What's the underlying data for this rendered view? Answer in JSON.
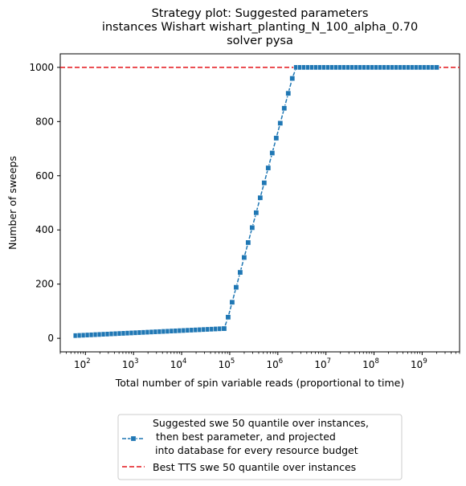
{
  "chart_data": {
    "type": "line",
    "title_lines": [
      "Strategy plot: Suggested parameters",
      "instances Wishart wishart_planting_N_100_alpha_0.70",
      "solver pysa"
    ],
    "xlabel": "Total number of spin variable reads (proportional to time)",
    "ylabel": "Number of sweeps",
    "x_scale": "log",
    "xlim": [
      30,
      6000000000
    ],
    "ylim": [
      -50,
      1050
    ],
    "x_ticks": [
      {
        "base": "10",
        "exp": "2",
        "value": 100
      },
      {
        "base": "10",
        "exp": "3",
        "value": 1000
      },
      {
        "base": "10",
        "exp": "4",
        "value": 10000
      },
      {
        "base": "10",
        "exp": "5",
        "value": 100000
      },
      {
        "base": "10",
        "exp": "6",
        "value": 1000000
      },
      {
        "base": "10",
        "exp": "7",
        "value": 10000000
      },
      {
        "base": "10",
        "exp": "8",
        "value": 100000000
      },
      {
        "base": "10",
        "exp": "9",
        "value": 1000000000
      }
    ],
    "y_ticks": [
      0,
      200,
      400,
      600,
      800,
      1000
    ],
    "grid": false,
    "legend_placement": "below plot",
    "series": [
      {
        "name": "Suggested swe 50 quantile over instances,\n  then best parameter, and projected\n into database for every resource budget",
        "label_lines": [
          "Suggested swe 50 quantile over instances,",
          "then best parameter, and projected",
          "into database for every resource budget"
        ],
        "style": "dashed line with square markers",
        "color": "#1f77b4",
        "log10_x_range": [
          1.8,
          9.3
        ],
        "points_per_decade": 12,
        "plateau_low": {
          "y_start": 10,
          "y_end": 36,
          "x_end": 80000
        },
        "ramp": {
          "x_start": 80000,
          "x_end": 2300000,
          "y_start": 36,
          "y_end": 1000
        },
        "plateau_high": {
          "y": 1000
        }
      },
      {
        "name": "Best TTS swe 50 quantile over instances",
        "style": "dashed horizontal line",
        "color": "#e4151a",
        "y": 1000
      }
    ]
  }
}
